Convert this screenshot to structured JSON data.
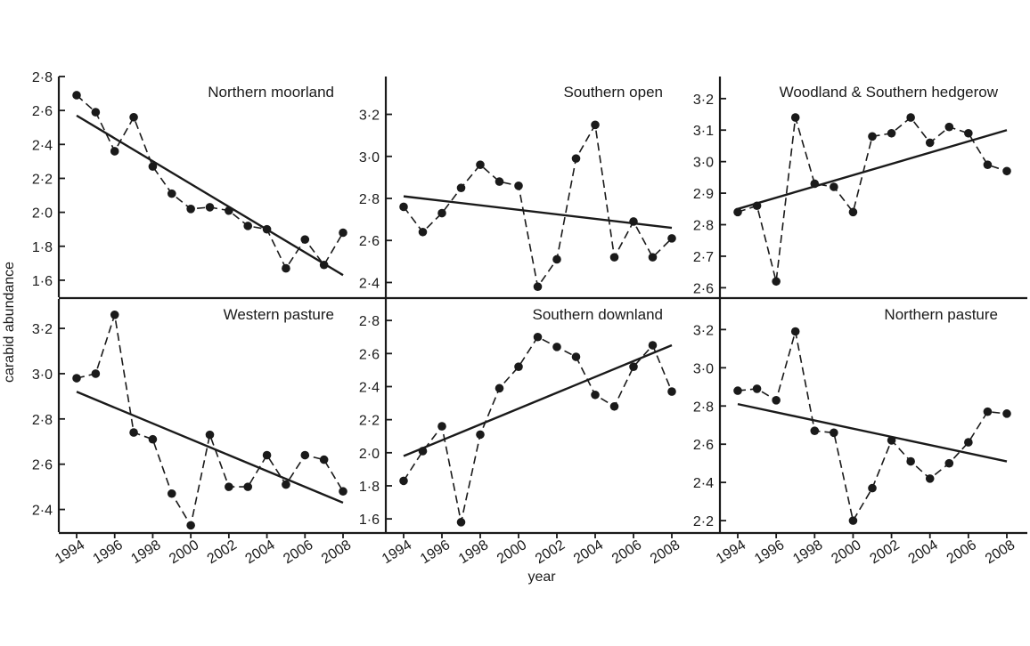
{
  "figure": {
    "ylabel": "carabid abundance",
    "xlabel": "year",
    "x_ticks": [
      "1994",
      "1996",
      "1998",
      "2000",
      "2002",
      "2004",
      "2006",
      "2008"
    ],
    "colors": {
      "ink": "#1a1a1a",
      "background": "#ffffff"
    }
  },
  "chart_data": [
    {
      "type": "line",
      "title": "Northern moorland",
      "x": [
        1994,
        1995,
        1996,
        1997,
        1998,
        1999,
        2000,
        2001,
        2002,
        2003,
        2004,
        2005,
        2006,
        2007,
        2008
      ],
      "series": [
        {
          "values": [
            2.69,
            2.59,
            2.36,
            2.56,
            2.27,
            2.11,
            2.02,
            2.03,
            2.01,
            1.92,
            1.9,
            1.67,
            1.84,
            1.69,
            1.88
          ],
          "style": "dashed-with-markers"
        }
      ],
      "trend": {
        "start": [
          1994,
          2.57
        ],
        "end": [
          2008,
          1.63
        ]
      },
      "ylim": [
        1.5,
        2.8
      ],
      "y_ticks": [
        "1·6",
        "1·8",
        "2·0",
        "2·2",
        "2·4",
        "2·6",
        "2·8"
      ],
      "title_align": "right"
    },
    {
      "type": "line",
      "title": "Southern open",
      "x": [
        1994,
        1995,
        1996,
        1997,
        1998,
        1999,
        2000,
        2001,
        2002,
        2003,
        2004,
        2005,
        2006,
        2007,
        2008
      ],
      "series": [
        {
          "values": [
            2.76,
            2.64,
            2.73,
            2.85,
            2.96,
            2.88,
            2.86,
            2.38,
            2.51,
            2.99,
            3.15,
            2.52,
            2.69,
            2.52,
            2.61
          ],
          "style": "dashed-with-markers"
        }
      ],
      "trend": {
        "start": [
          1994,
          2.81
        ],
        "end": [
          2008,
          2.66
        ]
      },
      "ylim": [
        2.33,
        3.38
      ],
      "y_ticks": [
        "2·4",
        "2·6",
        "2·8",
        "3·0",
        "3·2"
      ],
      "title_align": "right"
    },
    {
      "type": "line",
      "title": "Woodland & Southern hedgerow",
      "x": [
        1994,
        1995,
        1996,
        1997,
        1998,
        1999,
        2000,
        2001,
        2002,
        2003,
        2004,
        2005,
        2006,
        2007,
        2008
      ],
      "series": [
        {
          "values": [
            2.84,
            2.86,
            2.62,
            3.14,
            2.93,
            2.92,
            2.84,
            3.08,
            3.09,
            3.14,
            3.06,
            3.11,
            3.09,
            2.99,
            2.97
          ],
          "style": "dashed-with-markers"
        }
      ],
      "trend": {
        "start": [
          1994,
          2.85
        ],
        "end": [
          2008,
          3.1
        ]
      },
      "ylim": [
        2.57,
        3.27
      ],
      "y_ticks": [
        "2·6",
        "2·7",
        "2·8",
        "2·9",
        "3·0",
        "3·1",
        "3·2"
      ],
      "title_align": "right"
    },
    {
      "type": "line",
      "title": "Western pasture",
      "x": [
        1994,
        1995,
        1996,
        1997,
        1998,
        1999,
        2000,
        2001,
        2002,
        2003,
        2004,
        2005,
        2006,
        2007,
        2008
      ],
      "series": [
        {
          "values": [
            2.98,
            3.0,
            3.26,
            2.74,
            2.71,
            2.47,
            2.33,
            2.73,
            2.5,
            2.5,
            2.64,
            2.51,
            2.64,
            2.62,
            2.48
          ],
          "style": "dashed-with-markers"
        }
      ],
      "trend": {
        "start": [
          1994,
          2.92
        ],
        "end": [
          2008,
          2.43
        ]
      },
      "ylim": [
        2.3,
        3.33
      ],
      "y_ticks": [
        "2·4",
        "2·6",
        "2·8",
        "3·0",
        "3·2"
      ],
      "title_align": "right"
    },
    {
      "type": "line",
      "title": "Southern downland",
      "x": [
        1994,
        1995,
        1996,
        1997,
        1998,
        1999,
        2000,
        2001,
        2002,
        2003,
        2004,
        2005,
        2006,
        2007,
        2008
      ],
      "series": [
        {
          "values": [
            1.83,
            2.01,
            2.16,
            1.58,
            2.11,
            2.39,
            2.52,
            2.7,
            2.64,
            2.58,
            2.35,
            2.28,
            2.52,
            2.65,
            2.37
          ],
          "style": "dashed-with-markers"
        }
      ],
      "trend": {
        "start": [
          1994,
          1.98
        ],
        "end": [
          2008,
          2.65
        ]
      },
      "ylim": [
        1.52,
        2.93
      ],
      "y_ticks": [
        "1·6",
        "1·8",
        "2·0",
        "2·2",
        "2·4",
        "2·6",
        "2·8"
      ],
      "title_align": "right"
    },
    {
      "type": "line",
      "title": "Northern pasture",
      "x": [
        1994,
        1995,
        1996,
        1997,
        1998,
        1999,
        2000,
        2001,
        2002,
        2003,
        2004,
        2005,
        2006,
        2007,
        2008
      ],
      "series": [
        {
          "values": [
            2.88,
            2.89,
            2.83,
            3.19,
            2.67,
            2.66,
            2.2,
            2.37,
            2.62,
            2.51,
            2.42,
            2.5,
            2.61,
            2.77,
            2.76
          ],
          "style": "dashed-with-markers"
        }
      ],
      "trend": {
        "start": [
          1994,
          2.81
        ],
        "end": [
          2008,
          2.51
        ]
      },
      "ylim": [
        2.14,
        3.36
      ],
      "y_ticks": [
        "2·2",
        "2·4",
        "2·6",
        "2·8",
        "3·0",
        "3·2"
      ],
      "title_align": "right"
    }
  ]
}
